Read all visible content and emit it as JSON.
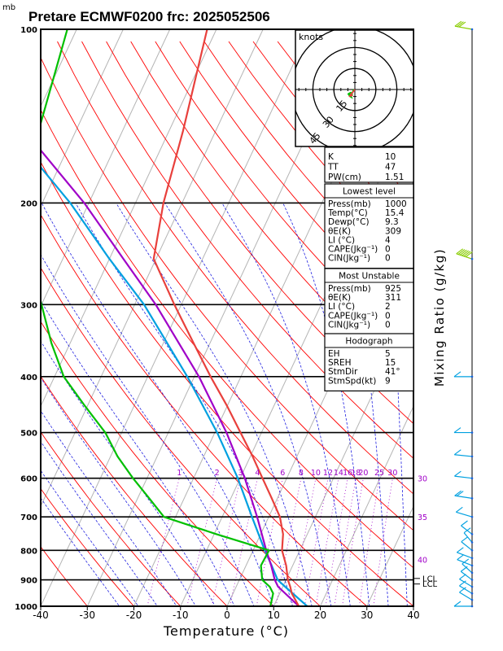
{
  "header": {
    "unit_label": "mb",
    "title": "Pretare ECMWF0200 frc: 2025052506"
  },
  "chart_data": {
    "type": "skew-t",
    "xlabel": "Temperature (°C)",
    "right_label": "Mixing Ratio (g/kg)",
    "x_ticks": [
      -40,
      -30,
      -20,
      -10,
      0,
      10,
      20,
      30,
      40
    ],
    "y_ticks": [
      100,
      200,
      300,
      400,
      500,
      600,
      700,
      800,
      900,
      1000
    ],
    "pressure_range": [
      1000,
      100
    ],
    "temperature": [
      {
        "p": 1000,
        "t": 15.4
      },
      {
        "p": 950,
        "t": 12.6
      },
      {
        "p": 925,
        "t": 11.6
      },
      {
        "p": 900,
        "t": 10.4
      },
      {
        "p": 850,
        "t": 8.6
      },
      {
        "p": 800,
        "t": 6.2
      },
      {
        "p": 750,
        "t": 4.8
      },
      {
        "p": 700,
        "t": 2.4
      },
      {
        "p": 650,
        "t": -1.2
      },
      {
        "p": 600,
        "t": -5.2
      },
      {
        "p": 550,
        "t": -9.5
      },
      {
        "p": 500,
        "t": -14.5
      },
      {
        "p": 450,
        "t": -20
      },
      {
        "p": 400,
        "t": -26.5
      },
      {
        "p": 350,
        "t": -33.5
      },
      {
        "p": 300,
        "t": -41.5
      },
      {
        "p": 250,
        "t": -50.5
      },
      {
        "p": 200,
        "t": -54
      },
      {
        "p": 150,
        "t": -57
      },
      {
        "p": 100,
        "t": -62
      }
    ],
    "dewpoint": [
      {
        "p": 1000,
        "t": 9.3
      },
      {
        "p": 950,
        "t": 8.6
      },
      {
        "p": 925,
        "t": 7.2
      },
      {
        "p": 900,
        "t": 4.9
      },
      {
        "p": 850,
        "t": 3.2
      },
      {
        "p": 800,
        "t": 3.4
      },
      {
        "p": 750,
        "t": -9.5
      },
      {
        "p": 700,
        "t": -22.5
      },
      {
        "p": 650,
        "t": -27.5
      },
      {
        "p": 600,
        "t": -33
      },
      {
        "p": 550,
        "t": -38.5
      },
      {
        "p": 500,
        "t": -43.5
      },
      {
        "p": 450,
        "t": -50.5
      },
      {
        "p": 400,
        "t": -58
      },
      {
        "p": 350,
        "t": -64
      },
      {
        "p": 300,
        "t": -70
      },
      {
        "p": 250,
        "t": -77
      },
      {
        "p": 200,
        "t": -82.5
      },
      {
        "p": 150,
        "t": -88
      },
      {
        "p": 100,
        "t": -92
      }
    ],
    "parcel": [
      {
        "p": 1000,
        "t": 15.4
      },
      {
        "p": 925,
        "t": 9
      },
      {
        "p": 900,
        "t": 7.6
      },
      {
        "p": 850,
        "t": 5.4
      },
      {
        "p": 800,
        "t": 2.8
      },
      {
        "p": 700,
        "t": -2.5
      },
      {
        "p": 600,
        "t": -9
      },
      {
        "p": 500,
        "t": -17.5
      },
      {
        "p": 400,
        "t": -29
      },
      {
        "p": 300,
        "t": -45.5
      },
      {
        "p": 250,
        "t": -57
      },
      {
        "p": 200,
        "t": -71
      },
      {
        "p": 150,
        "t": -91
      },
      {
        "p": 100,
        "t": -120
      }
    ],
    "virtual_parcel": [
      {
        "p": 1000,
        "t": 17.2
      },
      {
        "p": 925,
        "t": 10.5
      },
      {
        "p": 900,
        "t": 8.2
      },
      {
        "p": 850,
        "t": 5.5
      },
      {
        "p": 800,
        "t": 2.5
      },
      {
        "p": 700,
        "t": -3.6
      },
      {
        "p": 600,
        "t": -10.5
      },
      {
        "p": 500,
        "t": -19.5
      },
      {
        "p": 400,
        "t": -31.5
      },
      {
        "p": 300,
        "t": -48
      },
      {
        "p": 250,
        "t": -60
      },
      {
        "p": 200,
        "t": -74
      },
      {
        "p": 150,
        "t": -94
      },
      {
        "p": 100,
        "t": -123
      }
    ],
    "mixing_ratio_labels": [
      "1",
      "2",
      "3",
      "4",
      "6",
      "8",
      "10",
      "12",
      "14",
      "16",
      "18",
      "20",
      "25",
      "30"
    ],
    "mixing_ratio_values": [
      1,
      2,
      3,
      4,
      6,
      8,
      10,
      12,
      14,
      16,
      18,
      20,
      25,
      30
    ],
    "right_temperature_labels": [
      {
        "label": "30",
        "p": 600
      },
      {
        "label": "35",
        "p": 700
      },
      {
        "label": "40",
        "p": 830
      }
    ],
    "lcl_labels": [
      {
        "label": "LCL",
        "p": 895
      },
      {
        "label": "LCL",
        "p": 915
      }
    ]
  },
  "hodograph": {
    "unit_label": "knots",
    "ring_labels": [
      "15",
      "30",
      "45"
    ],
    "ring_values_kt": [
      15,
      30,
      45
    ]
  },
  "indices": {
    "k_label": "K",
    "k_value": "10",
    "tt_label": "TT",
    "tt_value": "47",
    "pw_label": "PW(cm)",
    "pw_value": "1.51"
  },
  "lowest_level": {
    "header": "Lowest level",
    "rows": [
      {
        "label": "Press(mb)",
        "value": "1000"
      },
      {
        "label": "Temp(°C)",
        "value": "15.4"
      },
      {
        "label": "Dewp(°C)",
        "value": "9.3"
      },
      {
        "label": "θE(K)",
        "value": "309"
      },
      {
        "label": "LI (°C)",
        "value": "4"
      },
      {
        "label": "CAPE(Jkg⁻¹)",
        "value": "0"
      },
      {
        "label": "CIN(Jkg⁻¹)",
        "value": "0"
      }
    ]
  },
  "most_unstable": {
    "header": "Most Unstable",
    "rows": [
      {
        "label": "Press(mb)",
        "value": "925"
      },
      {
        "label": "θE(K)",
        "value": "311"
      },
      {
        "label": "LI (°C)",
        "value": "2"
      },
      {
        "label": "CAPE(Jkg⁻¹)",
        "value": "0"
      },
      {
        "label": "CIN(Jkg⁻¹)",
        "value": "0"
      }
    ]
  },
  "hodograph_box": {
    "header": "Hodograph",
    "rows": [
      {
        "label": "EH",
        "value": "5"
      },
      {
        "label": "SREH",
        "value": "15"
      },
      {
        "label": "StmDir",
        "value": "41°"
      },
      {
        "label": "StmSpd(kt)",
        "value": "9"
      }
    ]
  },
  "colors": {
    "temperature": "#e8403c",
    "dewpoint": "#00c000",
    "parcel": "#a000c8",
    "virtual_parcel": "#00a0e0",
    "isotherm": "#b4b4b4",
    "dry_adiabat": "#ff0000",
    "moist_adiabat": "#2020e0",
    "mixing_ratio": "#a000c8",
    "wind_low": "#00a0e0",
    "wind_high": "#88cc00"
  },
  "winds": [
    {
      "p": 1000,
      "u": 3,
      "v": 0
    },
    {
      "p": 975,
      "u": 2,
      "v": 2
    },
    {
      "p": 950,
      "u": 3,
      "v": 3
    },
    {
      "p": 925,
      "u": 4,
      "v": 4
    },
    {
      "p": 900,
      "u": 4,
      "v": 5
    },
    {
      "p": 875,
      "u": 4,
      "v": 6
    },
    {
      "p": 850,
      "u": 6,
      "v": 4
    },
    {
      "p": 825,
      "u": 8,
      "v": 5
    },
    {
      "p": 800,
      "u": 6,
      "v": 8
    },
    {
      "p": 775,
      "u": 5,
      "v": 10
    },
    {
      "p": 750,
      "u": 7,
      "v": 9
    },
    {
      "p": 700,
      "u": 10,
      "v": 5
    },
    {
      "p": 650,
      "u": 12,
      "v": 3
    },
    {
      "p": 600,
      "u": 10,
      "v": 2
    },
    {
      "p": 550,
      "u": 6,
      "v": 1
    },
    {
      "p": 500,
      "u": 5,
      "v": 0
    },
    {
      "p": 400,
      "u": 8,
      "v": 0
    },
    {
      "p": 250,
      "u": 40,
      "v": 22
    },
    {
      "p": 100,
      "u": 20,
      "v": 6
    }
  ]
}
